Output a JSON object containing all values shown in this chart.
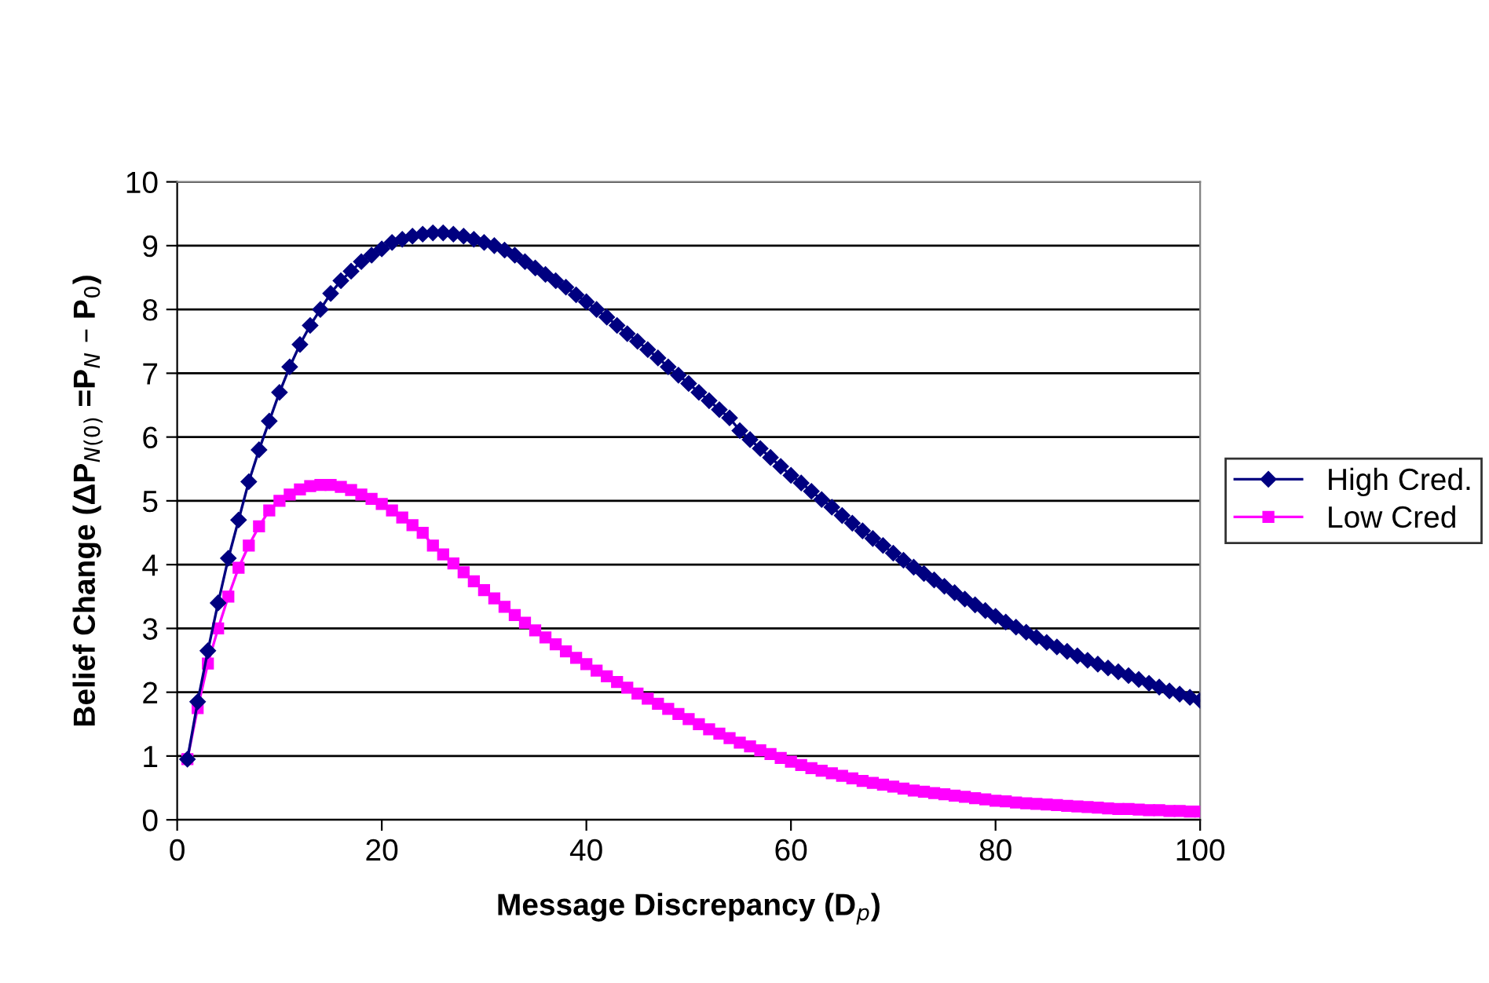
{
  "chart_data": {
    "type": "line",
    "xlabel": "Message Discrepancy (D$_{p}$)",
    "ylabel": "Belief Change (ΔP$_{N(0)}$ =P$_{N}$ – P$_{0}$)",
    "x": [
      1,
      2,
      3,
      4,
      5,
      6,
      7,
      8,
      9,
      10,
      11,
      12,
      13,
      14,
      15,
      16,
      17,
      18,
      19,
      20,
      21,
      22,
      23,
      24,
      25,
      26,
      27,
      28,
      29,
      30,
      31,
      32,
      33,
      34,
      35,
      36,
      37,
      38,
      39,
      40,
      41,
      42,
      43,
      44,
      45,
      46,
      47,
      48,
      49,
      50,
      51,
      52,
      53,
      54,
      55,
      56,
      57,
      58,
      59,
      60,
      61,
      62,
      63,
      64,
      65,
      66,
      67,
      68,
      69,
      70,
      71,
      72,
      73,
      74,
      75,
      76,
      77,
      78,
      79,
      80,
      81,
      82,
      83,
      84,
      85,
      86,
      87,
      88,
      89,
      90,
      91,
      92,
      93,
      94,
      95,
      96,
      97,
      98,
      99,
      100
    ],
    "series": [
      {
        "name": "High Cred.",
        "color": "#000080",
        "marker": "diamond",
        "values": [
          0.95,
          1.85,
          2.65,
          3.4,
          4.1,
          4.7,
          5.3,
          5.8,
          6.25,
          6.7,
          7.1,
          7.45,
          7.75,
          8.0,
          8.25,
          8.45,
          8.6,
          8.75,
          8.85,
          8.95,
          9.05,
          9.1,
          9.15,
          9.18,
          9.2,
          9.2,
          9.18,
          9.15,
          9.1,
          9.05,
          9.0,
          8.93,
          8.85,
          8.75,
          8.65,
          8.55,
          8.45,
          8.35,
          8.23,
          8.12,
          8.0,
          7.88,
          7.75,
          7.62,
          7.5,
          7.37,
          7.24,
          7.1,
          6.97,
          6.84,
          6.7,
          6.57,
          6.43,
          6.3,
          6.1,
          5.96,
          5.82,
          5.68,
          5.54,
          5.4,
          5.28,
          5.15,
          5.02,
          4.9,
          4.77,
          4.65,
          4.53,
          4.41,
          4.3,
          4.18,
          4.07,
          3.96,
          3.86,
          3.76,
          3.66,
          3.56,
          3.46,
          3.37,
          3.28,
          3.19,
          3.1,
          3.02,
          2.94,
          2.86,
          2.78,
          2.71,
          2.64,
          2.57,
          2.5,
          2.44,
          2.38,
          2.32,
          2.26,
          2.2,
          2.14,
          2.08,
          2.02,
          1.97,
          1.92,
          1.87
        ]
      },
      {
        "name": "Low Cred",
        "color": "#ff00ff",
        "marker": "square",
        "values": [
          0.95,
          1.75,
          2.45,
          3.0,
          3.5,
          3.95,
          4.3,
          4.6,
          4.85,
          5.0,
          5.1,
          5.18,
          5.23,
          5.25,
          5.25,
          5.22,
          5.17,
          5.1,
          5.03,
          4.95,
          4.85,
          4.74,
          4.62,
          4.5,
          4.3,
          4.16,
          4.02,
          3.88,
          3.74,
          3.6,
          3.47,
          3.34,
          3.21,
          3.09,
          2.97,
          2.86,
          2.75,
          2.64,
          2.54,
          2.44,
          2.34,
          2.25,
          2.16,
          2.07,
          1.98,
          1.9,
          1.82,
          1.74,
          1.66,
          1.58,
          1.5,
          1.42,
          1.35,
          1.28,
          1.21,
          1.15,
          1.09,
          1.03,
          0.97,
          0.91,
          0.86,
          0.81,
          0.77,
          0.73,
          0.69,
          0.65,
          0.61,
          0.58,
          0.55,
          0.52,
          0.49,
          0.46,
          0.44,
          0.42,
          0.4,
          0.38,
          0.36,
          0.34,
          0.32,
          0.3,
          0.29,
          0.27,
          0.26,
          0.25,
          0.24,
          0.23,
          0.22,
          0.21,
          0.2,
          0.19,
          0.18,
          0.17,
          0.17,
          0.16,
          0.15,
          0.15,
          0.14,
          0.14,
          0.13,
          0.13
        ]
      }
    ],
    "xlim": [
      0,
      100
    ],
    "xticks": [
      0,
      20,
      40,
      60,
      80,
      100
    ],
    "ylim": [
      0,
      10
    ],
    "yticks": [
      0,
      1,
      2,
      3,
      4,
      5,
      6,
      7,
      8,
      9,
      10
    ],
    "grid": "y",
    "legend": "right",
    "line_style": "solid"
  }
}
